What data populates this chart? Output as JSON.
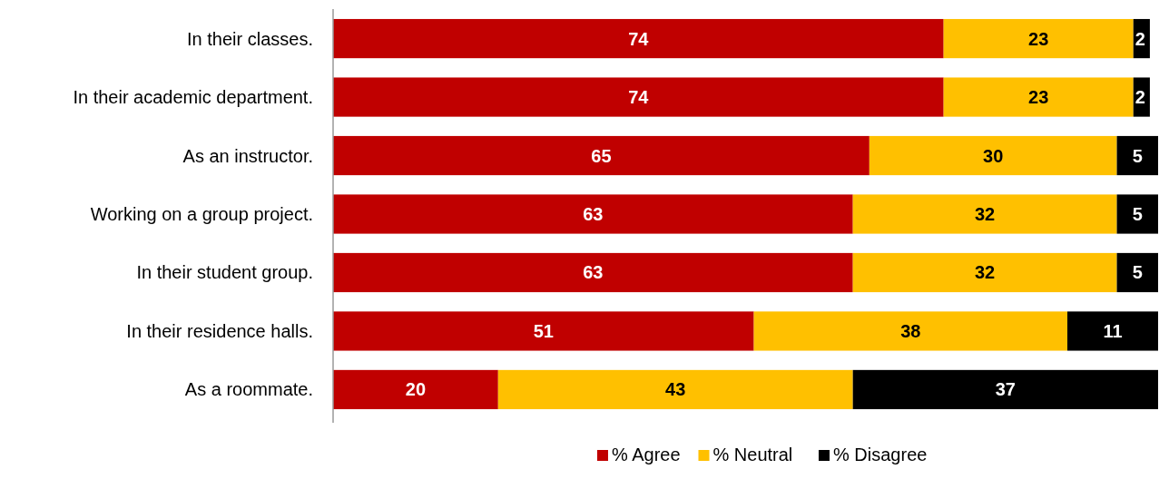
{
  "chart_data": {
    "type": "bar",
    "orientation": "horizontal",
    "stacked": true,
    "data_labels": true,
    "legend": "bottom",
    "xlim": [
      0,
      100
    ],
    "tick_labels": "y",
    "categories": [
      "In their classes.",
      "In their academic department.",
      "As an instructor.",
      "Working on a group project.",
      "In their student group.",
      "In their residence halls.",
      "As a roommate."
    ],
    "series": [
      {
        "name": "% Agree",
        "color": "#c00000",
        "values": [
          74,
          74,
          65,
          63,
          63,
          51,
          20
        ]
      },
      {
        "name": "% Neutral",
        "color": "#ffc000",
        "values": [
          23,
          23,
          30,
          32,
          32,
          38,
          43
        ]
      },
      {
        "name": "% Disagree",
        "color": "#000000",
        "values": [
          2,
          2,
          5,
          5,
          5,
          11,
          37
        ]
      }
    ]
  }
}
